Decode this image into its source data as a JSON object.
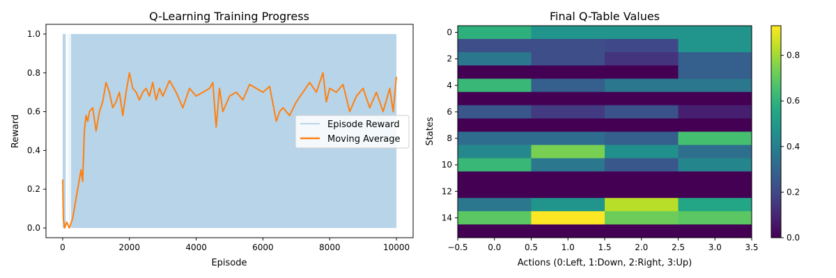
{
  "chart_data": [
    {
      "type": "line",
      "title": "Q-Learning Training Progress",
      "xlabel": "Episode",
      "ylabel": "Reward",
      "xlim": [
        -500,
        10500
      ],
      "ylim": [
        -0.05,
        1.05
      ],
      "xticks": [
        0,
        2000,
        4000,
        6000,
        8000,
        10000
      ],
      "xtick_labels": [
        "0",
        "2000",
        "4000",
        "6000",
        "8000",
        "10000"
      ],
      "yticks": [
        0.0,
        0.2,
        0.4,
        0.6,
        0.8,
        1.0
      ],
      "ytick_labels": [
        "0.0",
        "0.2",
        "0.4",
        "0.6",
        "0.8",
        "1.0"
      ],
      "grid": false,
      "legend_position": "right",
      "series": [
        {
          "name": "Episode Reward",
          "color": "#b8d4e8",
          "description_values": "binary 0/1 per episode; dense band from 0 to 1 across all 10000 episodes",
          "range": [
            0,
            10000
          ],
          "values_min": 0.0,
          "values_max": 1.0
        },
        {
          "name": "Moving Average",
          "color": "#ff7f0e",
          "x": [
            0,
            20,
            60,
            120,
            200,
            300,
            400,
            500,
            550,
            600,
            650,
            700,
            750,
            800,
            900,
            1000,
            1100,
            1200,
            1300,
            1400,
            1500,
            1600,
            1700,
            1800,
            1900,
            2000,
            2100,
            2200,
            2300,
            2400,
            2500,
            2600,
            2700,
            2800,
            2900,
            3000,
            3200,
            3400,
            3600,
            3800,
            4000,
            4200,
            4400,
            4500,
            4600,
            4700,
            4800,
            5000,
            5200,
            5400,
            5600,
            5800,
            6000,
            6200,
            6400,
            6500,
            6600,
            6800,
            7000,
            7200,
            7400,
            7600,
            7800,
            7900,
            8000,
            8200,
            8400,
            8600,
            8800,
            9000,
            9200,
            9400,
            9600,
            9800,
            9900,
            10000
          ],
          "y": [
            0.25,
            0.05,
            0.0,
            0.03,
            0.0,
            0.05,
            0.15,
            0.25,
            0.3,
            0.24,
            0.5,
            0.58,
            0.55,
            0.6,
            0.62,
            0.5,
            0.6,
            0.65,
            0.75,
            0.7,
            0.62,
            0.65,
            0.7,
            0.58,
            0.7,
            0.8,
            0.72,
            0.7,
            0.66,
            0.7,
            0.72,
            0.68,
            0.75,
            0.66,
            0.72,
            0.68,
            0.76,
            0.7,
            0.62,
            0.72,
            0.68,
            0.7,
            0.72,
            0.75,
            0.52,
            0.72,
            0.6,
            0.68,
            0.7,
            0.66,
            0.74,
            0.72,
            0.7,
            0.73,
            0.55,
            0.6,
            0.62,
            0.58,
            0.65,
            0.7,
            0.75,
            0.7,
            0.8,
            0.65,
            0.72,
            0.7,
            0.74,
            0.6,
            0.68,
            0.72,
            0.62,
            0.7,
            0.6,
            0.72,
            0.6,
            0.78
          ]
        }
      ]
    },
    {
      "type": "heatmap",
      "title": "Final Q-Table Values",
      "xlabel": "Actions (0:Left, 1:Down, 2:Right, 3:Up)",
      "ylabel": "States",
      "xlim": [
        -0.5,
        3.5
      ],
      "ylim": [
        15.5,
        -0.5
      ],
      "xticks": [
        -0.5,
        0.0,
        0.5,
        1.0,
        1.5,
        2.0,
        2.5,
        3.0,
        3.5
      ],
      "xtick_labels": [
        "−0.5",
        "0.0",
        "0.5",
        "1.0",
        "1.5",
        "2.0",
        "2.5",
        "3.0",
        "3.5"
      ],
      "yticks": [
        0,
        2,
        4,
        6,
        8,
        10,
        12,
        14
      ],
      "ytick_labels": [
        "0",
        "2",
        "4",
        "6",
        "8",
        "10",
        "12",
        "14"
      ],
      "colormap": "viridis",
      "vmin": 0.0,
      "vmax": 0.93,
      "colorbar_ticks": [
        0.0,
        0.2,
        0.4,
        0.6,
        0.8
      ],
      "colorbar_tick_labels": [
        "0.0",
        "0.2",
        "0.4",
        "0.6",
        "0.8"
      ],
      "rows": [
        [
          0.59,
          0.48,
          0.48,
          0.48
        ],
        [
          0.22,
          0.22,
          0.2,
          0.48
        ],
        [
          0.37,
          0.22,
          0.14,
          0.28
        ],
        [
          0.0,
          0.0,
          0.0,
          0.28
        ],
        [
          0.62,
          0.28,
          0.37,
          0.37
        ],
        [
          0.0,
          0.0,
          0.0,
          0.0
        ],
        [
          0.25,
          0.16,
          0.23,
          0.08
        ],
        [
          0.0,
          0.0,
          0.0,
          0.0
        ],
        [
          0.33,
          0.33,
          0.28,
          0.65
        ],
        [
          0.43,
          0.74,
          0.46,
          0.34
        ],
        [
          0.62,
          0.37,
          0.25,
          0.42
        ],
        [
          0.0,
          0.0,
          0.0,
          0.0
        ],
        [
          0.0,
          0.0,
          0.0,
          0.0
        ],
        [
          0.37,
          0.48,
          0.83,
          0.55
        ],
        [
          0.69,
          0.93,
          0.72,
          0.69
        ],
        [
          0.0,
          0.0,
          0.0,
          0.0
        ]
      ]
    }
  ]
}
